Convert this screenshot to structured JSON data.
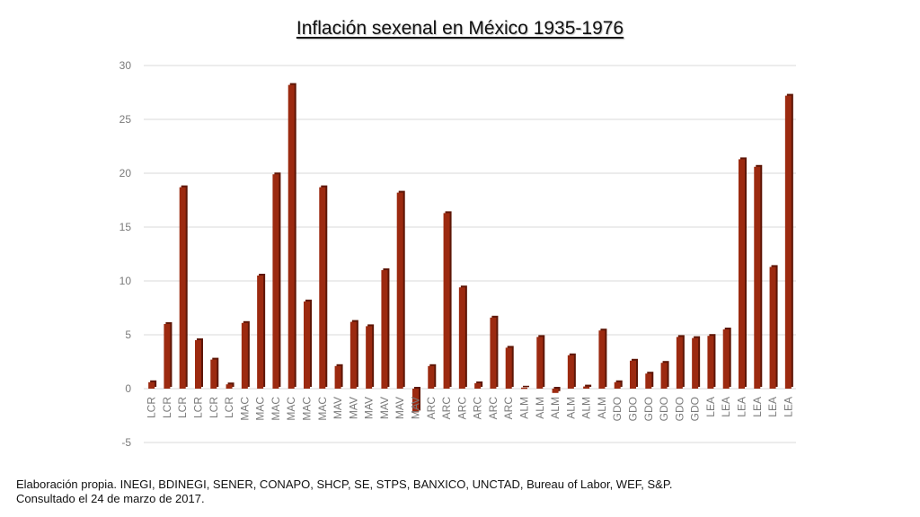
{
  "chart_data": {
    "type": "bar",
    "title": "Inflación sexenal en México 1935-1976",
    "xlabel": "",
    "ylabel": "",
    "ylim": [
      -5,
      30
    ],
    "yticks": [
      -5,
      0,
      5,
      10,
      15,
      20,
      25,
      30
    ],
    "grid": true,
    "legend": "none",
    "bar_color": "#9c2a10",
    "bar_shadow_color": "#5e1606",
    "categories": [
      "LCR",
      "LCR",
      "LCR",
      "LCR",
      "LCR",
      "LCR",
      "MAC",
      "MAC",
      "MAC",
      "MAC",
      "MAC",
      "MAC",
      "MAV",
      "MAV",
      "MAV",
      "MAV",
      "MAV",
      "MAV",
      "ARC",
      "ARC",
      "ARC",
      "ARC",
      "ARC",
      "ARC",
      "ALM",
      "ALM",
      "ALM",
      "ALM",
      "ALM",
      "ALM",
      "GDO",
      "GDO",
      "GDO",
      "GDO",
      "GDO",
      "GDO",
      "LEA",
      "LEA",
      "LEA",
      "LEA",
      "LEA",
      "LEA"
    ],
    "values": [
      0.6,
      6.0,
      18.7,
      4.5,
      2.7,
      0.4,
      6.1,
      10.5,
      19.9,
      28.2,
      8.1,
      18.7,
      2.1,
      6.2,
      5.8,
      11.0,
      18.2,
      -2.2,
      2.1,
      16.3,
      9.4,
      0.5,
      6.6,
      3.8,
      0.1,
      4.8,
      -0.4,
      3.1,
      0.2,
      5.4,
      0.6,
      2.6,
      1.4,
      2.4,
      4.8,
      4.7,
      4.9,
      5.5,
      21.3,
      20.6,
      11.3,
      27.2
    ]
  },
  "source_note": {
    "line1": "Elaboración propia. INEGI, BDINEGI, SENER, CONAPO, SHCP, SE, STPS, BANXICO, UNCTAD, Bureau of Labor, WEF, S&P.",
    "line2": "Consultado el 24 de marzo de 2017."
  }
}
